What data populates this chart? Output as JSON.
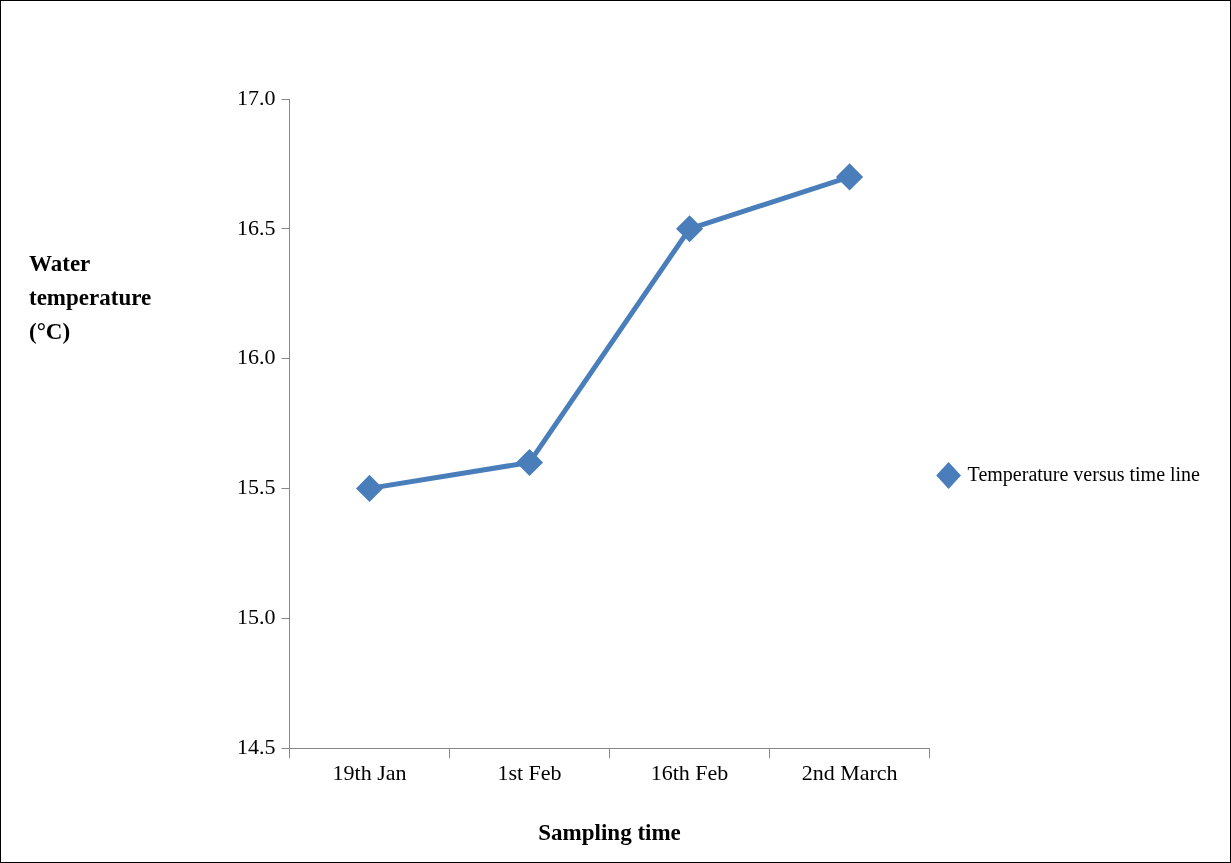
{
  "chart_data": {
    "type": "line",
    "xlabel": "Sampling time",
    "ylabel": "Water temperature (°C)",
    "categories": [
      "19th Jan",
      "1st Feb",
      "16th Feb",
      "2nd March"
    ],
    "series": [
      {
        "name": "Temperature versus time line",
        "color": "#4a7ebb",
        "values": [
          15.5,
          15.6,
          16.5,
          16.7
        ]
      }
    ],
    "ylim": [
      14.5,
      17.0
    ],
    "yticks": [
      {
        "value": 14.5,
        "label": "14.5"
      },
      {
        "value": 15.0,
        "label": "15.0"
      },
      {
        "value": 15.5,
        "label": "15.5"
      },
      {
        "value": 16.0,
        "label": "16.0"
      },
      {
        "value": 16.5,
        "label": "16.5"
      },
      {
        "value": 17.0,
        "label": "17.0"
      }
    ],
    "grid": false,
    "legend": "right",
    "marker": "diamond",
    "line_style": "solid"
  }
}
